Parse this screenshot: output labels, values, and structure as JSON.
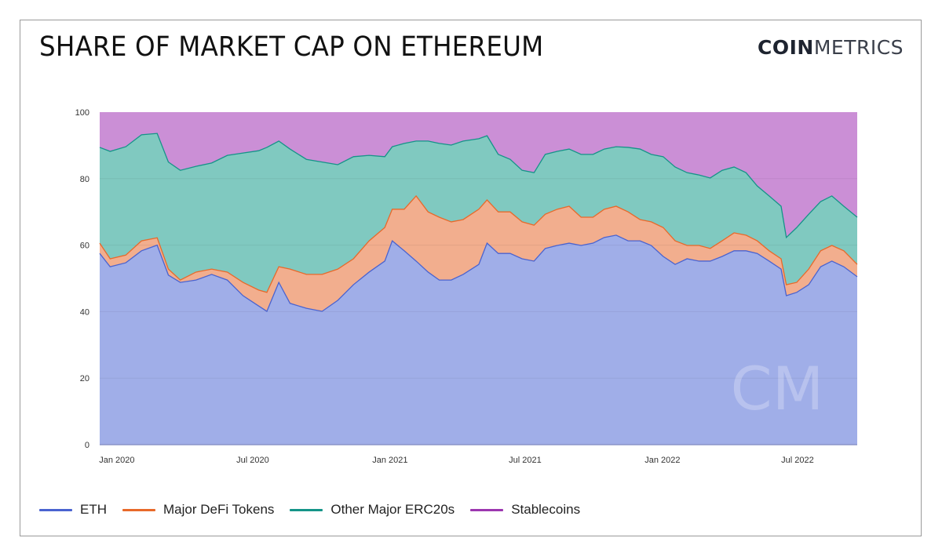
{
  "header": {
    "title": "SHARE OF MARKET CAP ON ETHEREUM",
    "logo_bold": "COIN",
    "logo_light": "METRICS",
    "watermark": "CM"
  },
  "chart_data": {
    "type": "area",
    "stacked": true,
    "title": "SHARE OF MARKET CAP ON ETHEREUM",
    "xlabel": "",
    "ylabel": "",
    "ylim": [
      0,
      100
    ],
    "yticks": [
      "0",
      "20",
      "40",
      "60",
      "80",
      "100"
    ],
    "xticks": [
      {
        "date": "2020-01-01",
        "label": "Jan 2020"
      },
      {
        "date": "2020-07-01",
        "label": "Jul 2020"
      },
      {
        "date": "2021-01-01",
        "label": "Jan 2021"
      },
      {
        "date": "2021-07-01",
        "label": "Jul 2021"
      },
      {
        "date": "2022-01-01",
        "label": "Jan 2022"
      },
      {
        "date": "2022-07-01",
        "label": "Jul 2022"
      }
    ],
    "xlim": [
      "2019-12-09",
      "2022-09-19"
    ],
    "grid": true,
    "legend_position": "bottom-left",
    "x": [
      "2019-12-09",
      "2019-12-23",
      "2020-01-13",
      "2020-02-03",
      "2020-02-24",
      "2020-03-10",
      "2020-03-26",
      "2020-04-16",
      "2020-05-07",
      "2020-05-28",
      "2020-06-18",
      "2020-07-09",
      "2020-07-20",
      "2020-08-05",
      "2020-08-20",
      "2020-09-11",
      "2020-10-02",
      "2020-10-23",
      "2020-11-13",
      "2020-12-04",
      "2020-12-25",
      "2021-01-04",
      "2021-01-20",
      "2021-02-05",
      "2021-02-21",
      "2021-03-08",
      "2021-03-24",
      "2021-04-09",
      "2021-04-30",
      "2021-05-11",
      "2021-05-26",
      "2021-06-11",
      "2021-06-27",
      "2021-07-13",
      "2021-07-28",
      "2021-08-13",
      "2021-08-29",
      "2021-09-14",
      "2021-09-30",
      "2021-10-15",
      "2021-10-31",
      "2021-11-16",
      "2021-12-02",
      "2021-12-17",
      "2022-01-02",
      "2022-01-18",
      "2022-02-03",
      "2022-02-19",
      "2022-03-06",
      "2022-03-22",
      "2022-04-07",
      "2022-04-23",
      "2022-05-08",
      "2022-05-24",
      "2022-06-09",
      "2022-06-16",
      "2022-06-30",
      "2022-07-16",
      "2022-08-01",
      "2022-08-16",
      "2022-09-01",
      "2022-09-19"
    ],
    "series": [
      {
        "name": "ETH",
        "color": "#4a63d0",
        "fill": "#a0aee8",
        "values": [
          57.5,
          53.5,
          54.7,
          58.3,
          60,
          51,
          48.8,
          49.5,
          51.2,
          49.5,
          44.8,
          41.7,
          40.1,
          48.8,
          42.5,
          41,
          40.1,
          43.4,
          48.1,
          51.9,
          55.2,
          61.3,
          58.3,
          55.2,
          51.9,
          49.5,
          49.5,
          51.2,
          54.2,
          60.6,
          57.5,
          57.5,
          55.9,
          55.2,
          59,
          59.9,
          60.6,
          59.9,
          60.6,
          62.3,
          63,
          61.3,
          61.3,
          59.9,
          56.6,
          54.2,
          55.9,
          55.2,
          55.2,
          56.6,
          58.3,
          58.3,
          57.5,
          55.2,
          52.8,
          44.8,
          45.8,
          48.1,
          53.5,
          55.2,
          53.5,
          50.5
        ]
      },
      {
        "name": "Major DeFi Tokens",
        "color": "#e8692a",
        "fill": "#f2ae8e",
        "values": [
          3.1,
          2.4,
          2.3,
          3.0,
          2.2,
          1.8,
          0.7,
          2.4,
          1.6,
          2.4,
          4.0,
          4.8,
          5.7,
          4.7,
          10.3,
          10.2,
          11.1,
          9.4,
          7.8,
          9.4,
          10.1,
          9.5,
          12.5,
          19.6,
          18.1,
          18.9,
          17.5,
          16.5,
          16.6,
          13.0,
          12.5,
          12.5,
          11.1,
          10.8,
          10.3,
          10.9,
          11.1,
          8.5,
          7.8,
          8.5,
          8.7,
          8.7,
          6.4,
          7.1,
          8.7,
          7.1,
          4.0,
          4.7,
          3.8,
          4.7,
          5.4,
          4.7,
          3.8,
          3.1,
          3.1,
          3.3,
          3.0,
          4.7,
          4.8,
          4.7,
          4.8,
          3.7
        ]
      },
      {
        "name": "Other Major ERC20s",
        "color": "#159488",
        "fill": "#80c9c0",
        "values": [
          28.8,
          32.3,
          32.6,
          31.9,
          31.4,
          32.2,
          33.0,
          31.8,
          31.9,
          35.1,
          38.9,
          41.9,
          43.6,
          37.8,
          36.1,
          34.6,
          33.8,
          31.4,
          30.7,
          25.7,
          21.3,
          18.8,
          19.8,
          16.5,
          21.3,
          22.2,
          23.1,
          23.6,
          21.2,
          19.3,
          17.3,
          15.8,
          15.5,
          15.8,
          18.0,
          17.4,
          17.2,
          18.9,
          18.9,
          18.1,
          17.9,
          19.4,
          21.2,
          20.3,
          21.3,
          22.2,
          21.9,
          21.2,
          21.2,
          21.2,
          19.8,
          18.8,
          16.5,
          16.5,
          15.8,
          14.2,
          16.5,
          16.5,
          14.8,
          14.9,
          13.4,
          14.2
        ]
      },
      {
        "name": "Stablecoins",
        "color": "#9c37b0",
        "fill": "#cb8fd6",
        "values": [
          10.6,
          11.8,
          10.4,
          6.8,
          6.4,
          15,
          17.5,
          16.3,
          15.3,
          13,
          12.3,
          11.6,
          10.6,
          8.7,
          11.1,
          14.2,
          15,
          15.8,
          13.4,
          13,
          13.4,
          10.4,
          9.4,
          8.7,
          8.7,
          9.4,
          9.9,
          8.7,
          8,
          7.1,
          12.7,
          14.2,
          17.5,
          18.2,
          12.7,
          11.8,
          11.1,
          12.7,
          12.7,
          11.1,
          10.4,
          10.6,
          11.1,
          12.7,
          13.4,
          16.5,
          18.2,
          18.9,
          19.8,
          17.5,
          16.5,
          18.2,
          22.2,
          25.2,
          28.3,
          37.7,
          34.7,
          30.7,
          26.9,
          25.2,
          28.3,
          31.6
        ]
      }
    ]
  }
}
